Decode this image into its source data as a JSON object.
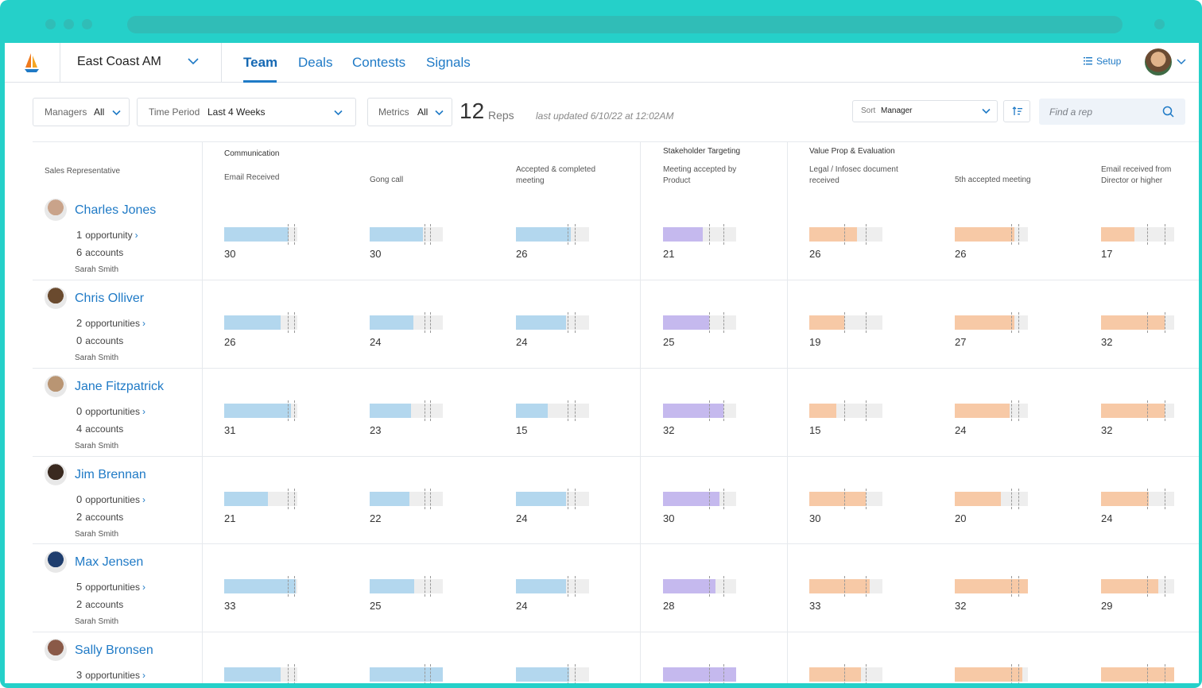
{
  "app": {
    "team_selector": "East Coast AM",
    "tabs": [
      "Team",
      "Deals",
      "Contests",
      "Signals"
    ],
    "active_tab": "Team",
    "setup_label": "Setup"
  },
  "filters": {
    "managers_label": "Managers",
    "managers_value": "All",
    "time_label": "Time Period",
    "time_value": "Last 4 Weeks",
    "metrics_label": "Metrics",
    "metrics_value": "All",
    "rep_count": "12",
    "rep_word": "Reps",
    "last_updated": "last updated 6/10/22 at 12:02AM",
    "sort_label": "Sort",
    "sort_value": "Manager",
    "search_placeholder": "Find a rep"
  },
  "table": {
    "rep_header": "Sales Representative",
    "groups": [
      {
        "name": "Communication",
        "color": "#1f8ad6"
      },
      {
        "name": "Stakeholder Targeting",
        "color": "#6a56d8"
      },
      {
        "name": "Value Prop & Evaluation",
        "color": "#e0771e"
      }
    ],
    "columns": [
      {
        "label": "Email Received",
        "group": 0
      },
      {
        "label": "Gong call",
        "group": 0
      },
      {
        "label": "Accepted & completed meeting",
        "group": 0
      },
      {
        "label": "Meeting accepted by Product",
        "group": 1
      },
      {
        "label": "Legal / Infosec document received",
        "group": 2
      },
      {
        "label": "5th accepted meeting",
        "group": 2
      },
      {
        "label": "Email received from Director or higher",
        "group": 2
      }
    ],
    "colors": {
      "blue": "#b3d7ee",
      "purple": "#c5b9ee",
      "orange": "#f7c9a6",
      "track": "#eeeeee"
    },
    "rows": [
      {
        "name": "Charles Jones",
        "opp_count": "1",
        "opp_label": "opportunity",
        "acct_count": "6",
        "acct_label": "accounts",
        "manager": "Sarah Smith",
        "values": [
          "30",
          "30",
          "26",
          "21",
          "26",
          "26",
          "17"
        ]
      },
      {
        "name": "Chris Olliver",
        "opp_count": "2",
        "opp_label": "opportunities",
        "acct_count": "0",
        "acct_label": "accounts",
        "manager": "Sarah Smith",
        "values": [
          "26",
          "24",
          "24",
          "25",
          "19",
          "27",
          "32"
        ]
      },
      {
        "name": "Jane Fitzpatrick",
        "opp_count": "0",
        "opp_label": "opportunities",
        "acct_count": "4",
        "acct_label": "accounts",
        "manager": "Sarah Smith",
        "values": [
          "31",
          "23",
          "15",
          "32",
          "15",
          "24",
          "32"
        ]
      },
      {
        "name": "Jim Brennan",
        "opp_count": "0",
        "opp_label": "opportunities",
        "acct_count": "2",
        "acct_label": "accounts",
        "manager": "Sarah Smith",
        "values": [
          "21",
          "22",
          "24",
          "30",
          "30",
          "20",
          "24"
        ]
      },
      {
        "name": "Max Jensen",
        "opp_count": "5",
        "opp_label": "opportunities",
        "acct_count": "2",
        "acct_label": "accounts",
        "manager": "Sarah Smith",
        "values": [
          "33",
          "25",
          "24",
          "28",
          "33",
          "32",
          "29"
        ]
      },
      {
        "name": "Sally Bronsen",
        "opp_count": "3",
        "opp_label": "opportunities",
        "acct_count": "",
        "acct_label": "",
        "manager": "",
        "values": [
          "",
          "",
          "",
          "",
          "",
          "",
          ""
        ]
      }
    ],
    "bar_fill": [
      [
        0.88,
        0.73,
        0.75,
        0.54,
        0.65,
        0.81,
        0.46
      ],
      [
        0.77,
        0.6,
        0.69,
        0.63,
        0.48,
        0.82,
        0.87
      ],
      [
        0.91,
        0.56,
        0.43,
        0.83,
        0.37,
        0.75,
        0.87
      ],
      [
        0.6,
        0.54,
        0.69,
        0.77,
        0.77,
        0.63,
        0.65
      ],
      [
        0.98,
        0.61,
        0.69,
        0.72,
        0.83,
        1.0,
        0.78
      ],
      [
        0.77,
        1.0,
        0.73,
        1.0,
        0.71,
        0.92,
        1.0
      ]
    ]
  }
}
